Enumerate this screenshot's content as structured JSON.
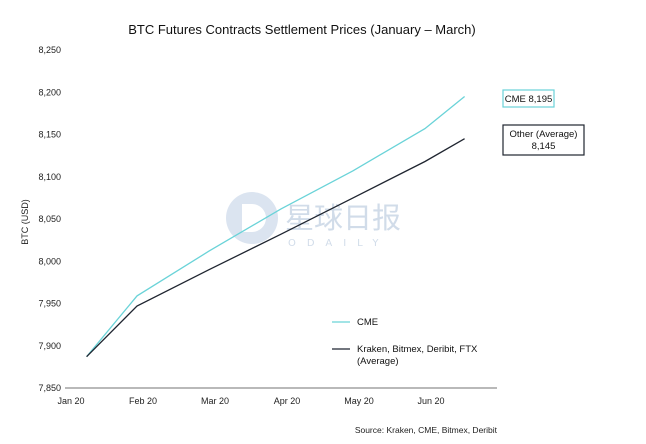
{
  "chart_data": {
    "type": "line",
    "title": "BTC Futures Contracts Settlement Prices (January – March)",
    "xlabel": "",
    "ylabel": "BTC (USD)",
    "x_ticks": [
      "Jan 20",
      "Feb 20",
      "Mar 20",
      "Apr 20",
      "May 20",
      "Jun 20"
    ],
    "y_ticks": [
      "7,850",
      "7,900",
      "7,950",
      "8,000",
      "8,050",
      "8,100",
      "8,150",
      "8,200",
      "8,250"
    ],
    "ylim": [
      7850,
      8250
    ],
    "xlim": [
      0,
      6
    ],
    "grid": false,
    "legend_position": "right",
    "series": [
      {
        "name": "CME",
        "color": "#6ad3d8",
        "x": [
          0.3,
          1.0,
          2.0,
          3.0,
          4.0,
          5.0,
          5.55
        ],
        "y": [
          7887,
          7959,
          8012,
          8062,
          8107,
          8157,
          8195
        ]
      },
      {
        "name": "Kraken, Bitmex, Deribit, FTX (Average)",
        "color": "#1f2530",
        "x": [
          0.3,
          1.0,
          2.0,
          3.0,
          4.0,
          5.0,
          5.55
        ],
        "y": [
          7887,
          7947,
          7990,
          8032,
          8075,
          8118,
          8145
        ]
      }
    ],
    "annotations": [
      {
        "text": "CME 8,195",
        "series": 0
      },
      {
        "text": "Other (Average)",
        "text2": "8,145",
        "series": 1
      }
    ],
    "source": "Source: Kraken, CME, Bitmex, Deribit"
  },
  "watermark": {
    "chinese": "星球日报",
    "latin": "ODAILY"
  }
}
